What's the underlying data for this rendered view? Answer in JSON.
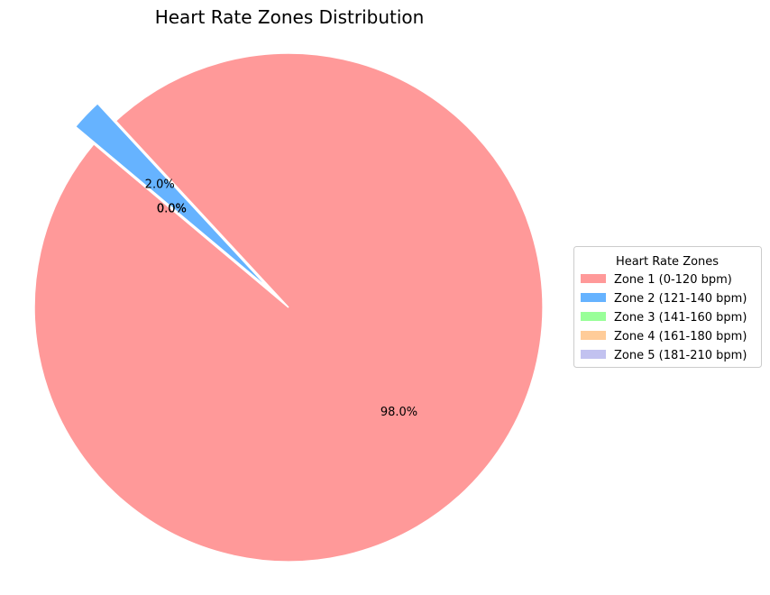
{
  "chart_data": {
    "type": "pie",
    "title": "Heart Rate Zones Distribution",
    "categories": [
      "Zone 1 (0-120 bpm)",
      "Zone 2 (121-140 bpm)",
      "Zone 3 (141-160 bpm)",
      "Zone 4 (161-180 bpm)",
      "Zone 5 (181-210 bpm)"
    ],
    "values": [
      98.0,
      2.0,
      0.0,
      0.0,
      0.0
    ],
    "value_labels": [
      "98.0%",
      "2.0%",
      "0.0%",
      "0.0%",
      "0.0%"
    ],
    "colors": [
      "#ff9999",
      "#66b3ff",
      "#99ff99",
      "#ffcc99",
      "#c2c2f0"
    ],
    "exploded": [
      false,
      true,
      false,
      false,
      false
    ],
    "start_angle_deg": 140,
    "direction": "counterclockwise",
    "legend_title": "Heart Rate Zones",
    "legend_position": "center-right"
  }
}
